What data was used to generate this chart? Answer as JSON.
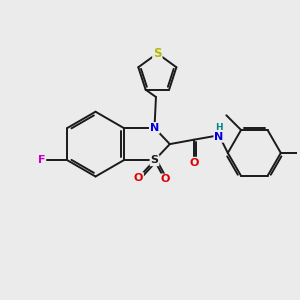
{
  "bg_color": "#ebebeb",
  "bond_color": "#1a1a1a",
  "atom_colors": {
    "S_thiophene": "#b8b800",
    "S_sulfone": "#1a1a1a",
    "N": "#0000dd",
    "O": "#dd0000",
    "F": "#cc00cc",
    "H": "#008888",
    "C": "#1a1a1a"
  },
  "figsize": [
    3.0,
    3.0
  ],
  "dpi": 100
}
